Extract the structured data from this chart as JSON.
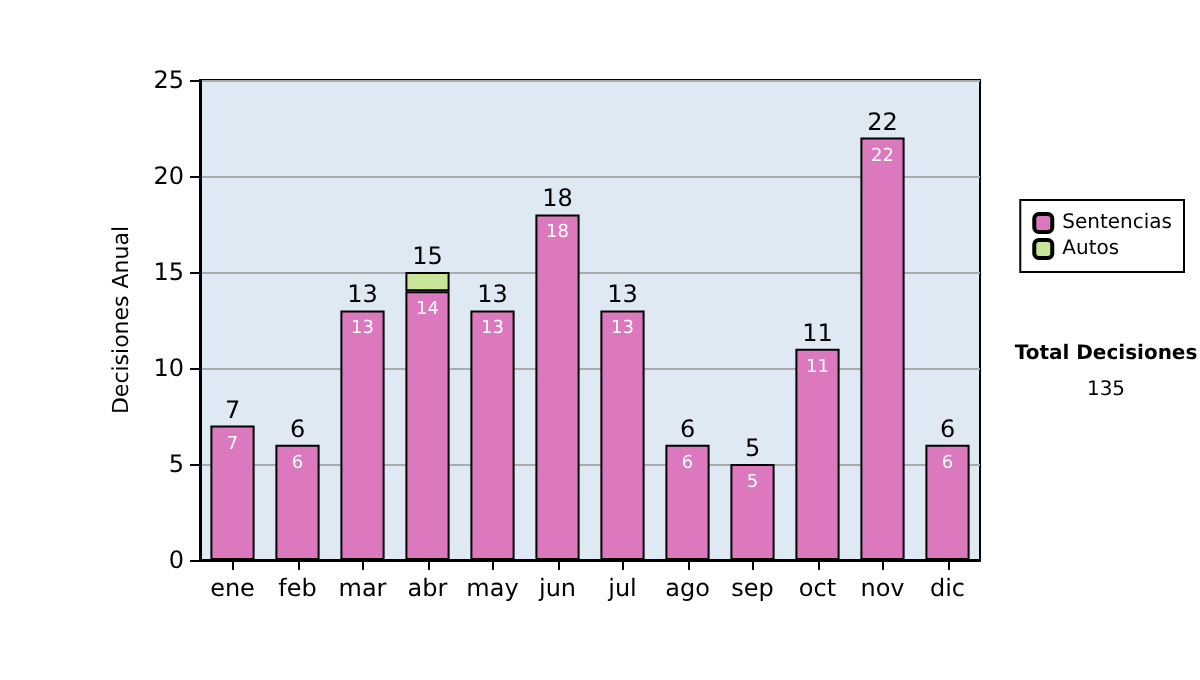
{
  "chart_data": {
    "type": "bar",
    "ylabel": "Decisiones Anual",
    "categories": [
      "ene",
      "feb",
      "mar",
      "abr",
      "may",
      "jun",
      "jul",
      "ago",
      "sep",
      "oct",
      "nov",
      "dic"
    ],
    "series": [
      {
        "name": "Sentencias",
        "color": "#dc78be",
        "values": [
          7,
          6,
          13,
          14,
          13,
          18,
          13,
          6,
          5,
          11,
          22,
          6
        ],
        "value_labels": [
          "7",
          "6",
          "13",
          "14",
          "13",
          "18",
          "13",
          "6",
          "5",
          "11",
          "22",
          "6"
        ]
      },
      {
        "name": "Autos",
        "color": "#c8e496",
        "values": [
          null,
          null,
          null,
          1,
          null,
          null,
          null,
          null,
          null,
          null,
          null,
          null
        ]
      }
    ],
    "stacked": true,
    "totals": [
      "7",
      "6",
      "13",
      "15",
      "13",
      "18",
      "13",
      "6",
      "5",
      "11",
      "22",
      "6"
    ],
    "ylim": [
      0,
      25
    ],
    "yticks": [
      0,
      5,
      10,
      15,
      20,
      25
    ],
    "grid": "y",
    "legend": "right",
    "annotations": [
      "Total Decisiones",
      "135"
    ]
  }
}
